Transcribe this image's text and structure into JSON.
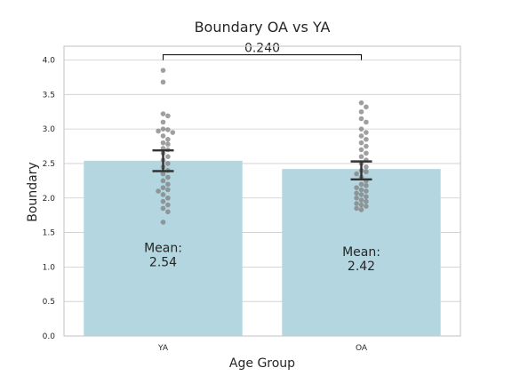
{
  "chart_data": {
    "type": "bar",
    "title": "Boundary OA vs YA",
    "xlabel": "Age Group",
    "ylabel": "Boundary",
    "categories": [
      "YA",
      "OA"
    ],
    "values": [
      2.54,
      2.42
    ],
    "error_bars": [
      {
        "low": 2.39,
        "high": 2.69
      },
      {
        "low": 2.27,
        "high": 2.53
      }
    ],
    "mean_labels": [
      {
        "prefix": "Mean:",
        "value": "2.54"
      },
      {
        "prefix": "Mean:",
        "value": "2.42"
      }
    ],
    "ylim": [
      0,
      4.2
    ],
    "yticks": [
      "0.0",
      "0.5",
      "1.0",
      "1.5",
      "2.0",
      "2.5",
      "3.0",
      "3.5",
      "4.0"
    ],
    "grid": true,
    "significance": {
      "label": "0.240",
      "between": [
        "YA",
        "OA"
      ],
      "y": 4.05
    },
    "points": [
      [
        3.85,
        3.68,
        3.22,
        3.19,
        3.1,
        3.0,
        2.99,
        2.97,
        2.95,
        2.9,
        2.85,
        2.8,
        2.78,
        2.72,
        2.7,
        2.65,
        2.6,
        2.55,
        2.5,
        2.45,
        2.4,
        2.35,
        2.3,
        2.25,
        2.2,
        2.15,
        2.12,
        2.1,
        2.05,
        2.0,
        1.95,
        1.9,
        1.85,
        1.8,
        1.65
      ],
      [
        3.38,
        3.32,
        3.25,
        3.15,
        3.1,
        3.0,
        2.95,
        2.9,
        2.85,
        2.8,
        2.75,
        2.7,
        2.65,
        2.6,
        2.55,
        2.5,
        2.45,
        2.4,
        2.38,
        2.35,
        2.3,
        2.25,
        2.2,
        2.18,
        2.15,
        2.12,
        2.1,
        2.07,
        2.05,
        2.02,
        2.0,
        1.97,
        1.95,
        1.92,
        1.9,
        1.88,
        1.85,
        1.83
      ]
    ],
    "colors": {
      "bar": "#b3d6e0",
      "points": "#7f7f7f",
      "errorbar": "#333333",
      "grid": "#cccccc",
      "spine": "#cccccc"
    }
  }
}
